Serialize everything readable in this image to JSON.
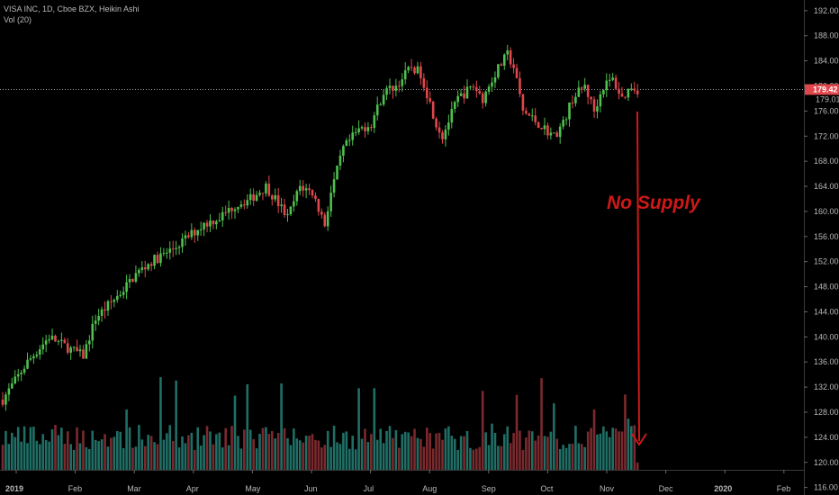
{
  "header": {
    "title": "VISA INC, 1D, Cboe BZX, Heikin Ashi",
    "volume_label": "Vol (20)"
  },
  "annotation": {
    "text": "No Supply",
    "color": "#d01818"
  },
  "colors": {
    "background": "#000000",
    "up": "#4fbf4f",
    "down": "#e0474c",
    "volume_up": "#1f6f66",
    "volume_down": "#7a2a2e",
    "axis_text": "#b8b8b8",
    "price_line": "#9a9a9a"
  },
  "chart_data": {
    "type": "candlestick",
    "style": "Heikin Ashi",
    "interval": "1D",
    "x_axis_labels": [
      "2019",
      "Feb",
      "Mar",
      "Apr",
      "May",
      "Jun",
      "Jul",
      "Aug",
      "Sep",
      "Oct",
      "Nov",
      "Dec",
      "2020",
      "Feb"
    ],
    "y_ticks": [
      "192.00",
      "188.00",
      "184.00",
      "180.00",
      "176.00",
      "172.00",
      "168.00",
      "164.00",
      "160.00",
      "156.00",
      "152.00",
      "148.00",
      "144.00",
      "140.00",
      "136.00",
      "132.00",
      "128.00",
      "124.00",
      "120.00",
      "116.00"
    ],
    "y_range": [
      114.8,
      193.7
    ],
    "price_labels": [
      {
        "value": 179.42,
        "text": "179.42",
        "highlight": true
      },
      {
        "value": 179.01,
        "text": "179.01",
        "highlight": false
      }
    ],
    "horizontal_line": 179.42,
    "close_trajectory": [
      [
        0,
        130
      ],
      [
        8,
        136
      ],
      [
        15,
        140
      ],
      [
        22,
        138
      ],
      [
        26,
        137
      ],
      [
        30,
        143
      ],
      [
        38,
        147
      ],
      [
        43,
        150
      ],
      [
        48,
        152
      ],
      [
        55,
        154
      ],
      [
        60,
        156
      ],
      [
        65,
        158
      ],
      [
        70,
        159
      ],
      [
        75,
        161
      ],
      [
        80,
        162
      ],
      [
        85,
        164
      ],
      [
        88,
        162
      ],
      [
        92,
        159
      ],
      [
        96,
        164
      ],
      [
        100,
        163
      ],
      [
        104,
        158
      ],
      [
        106,
        163
      ],
      [
        110,
        170
      ],
      [
        115,
        173
      ],
      [
        119,
        174
      ],
      [
        123,
        179
      ],
      [
        127,
        180
      ],
      [
        132,
        183
      ],
      [
        135,
        182
      ],
      [
        140,
        174
      ],
      [
        142,
        172
      ],
      [
        147,
        178
      ],
      [
        152,
        180
      ],
      [
        155,
        178
      ],
      [
        159,
        182
      ],
      [
        163,
        185
      ],
      [
        165,
        183
      ],
      [
        168,
        176
      ],
      [
        173,
        174
      ],
      [
        178,
        172
      ],
      [
        181,
        174
      ],
      [
        184,
        178
      ],
      [
        188,
        180
      ],
      [
        191,
        176
      ],
      [
        194,
        180
      ],
      [
        197,
        181
      ],
      [
        200,
        178
      ],
      [
        203,
        180
      ],
      [
        205,
        179.4
      ]
    ],
    "volume_axis": {
      "max_bar_height": 95
    }
  }
}
